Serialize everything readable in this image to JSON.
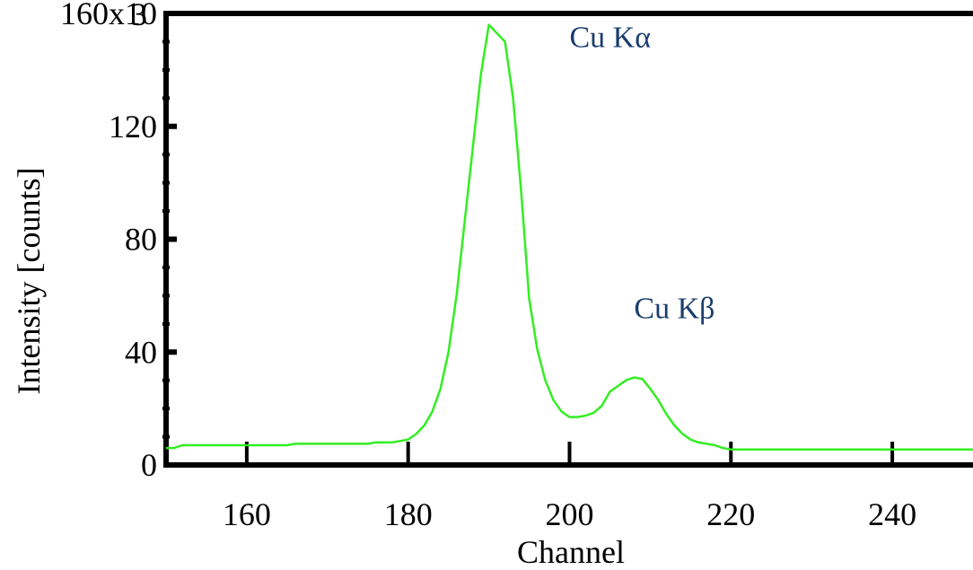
{
  "chart_data": {
    "type": "line",
    "xlabel": "Channel",
    "ylabel": "Intensity [counts]",
    "xlim": [
      150,
      250
    ],
    "ylim": [
      0,
      160
    ],
    "x_ticks": [
      160,
      180,
      200,
      220,
      240
    ],
    "x_tick_labels": [
      "160",
      "180",
      "200",
      "220",
      "240"
    ],
    "y_ticks": [
      0,
      40,
      80,
      120,
      160
    ],
    "y_tick_labels": [
      "0",
      "40",
      "80",
      "120",
      "160x10"
    ],
    "y_multiplier_exponent": "3",
    "grid": false,
    "series": [
      {
        "color": "#33ee22",
        "x": [
          150,
          151,
          152,
          155,
          160,
          165,
          166,
          170,
          175,
          176,
          178,
          179,
          180,
          181,
          182,
          183,
          184,
          185,
          186,
          187,
          188,
          189,
          190,
          191,
          192,
          193,
          194,
          195,
          196,
          197,
          198,
          199,
          200,
          201,
          202,
          203,
          204,
          205,
          206,
          207,
          208,
          209,
          210,
          211,
          212,
          213,
          214,
          215,
          216,
          217,
          218,
          219,
          220,
          225,
          230,
          240,
          250
        ],
        "y": [
          6,
          6,
          7,
          7,
          7,
          7,
          7.5,
          7.5,
          7.5,
          8,
          8,
          8.5,
          9,
          11,
          14,
          19,
          27,
          40,
          60,
          86,
          112,
          138,
          156,
          153,
          150,
          130,
          97,
          59,
          41,
          30,
          23,
          19,
          17,
          17,
          17.5,
          18.5,
          21,
          26,
          28,
          30,
          31,
          30.5,
          27,
          23,
          18,
          14,
          11,
          9,
          8,
          7.5,
          7,
          6,
          5.5,
          5.5,
          5.5,
          5.5,
          5.5
        ]
      }
    ],
    "annotations": [
      {
        "text": "Cu Kα",
        "x": 200,
        "y": 148,
        "color": "#1a3d6e"
      },
      {
        "text": "Cu Kβ",
        "x": 208,
        "y": 52,
        "color": "#1a3d6e"
      }
    ]
  }
}
